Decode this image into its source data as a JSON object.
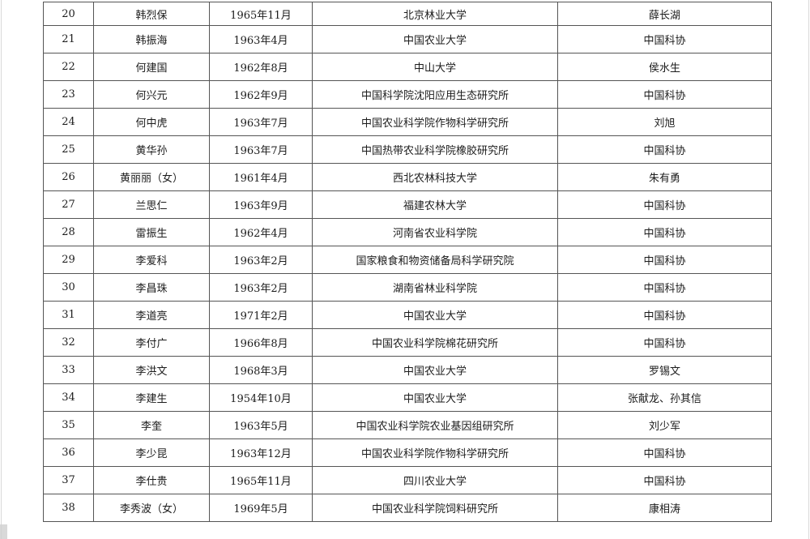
{
  "colors": {
    "table_border": "#555555",
    "text": "#1c1c1c",
    "page_edge": "#d9d9d9"
  },
  "table": {
    "column_keys": [
      "no",
      "name",
      "birth_date",
      "institution",
      "recommender"
    ],
    "rows": [
      [
        "20",
        "韩烈保",
        "1965年11月",
        "北京林业大学",
        "薛长湖"
      ],
      [
        "21",
        "韩振海",
        "1963年4月",
        "中国农业大学",
        "中国科协"
      ],
      [
        "22",
        "何建国",
        "1962年8月",
        "中山大学",
        "侯水生"
      ],
      [
        "23",
        "何兴元",
        "1962年9月",
        "中国科学院沈阳应用生态研究所",
        "中国科协"
      ],
      [
        "24",
        "何中虎",
        "1963年7月",
        "中国农业科学院作物科学研究所",
        "刘旭"
      ],
      [
        "25",
        "黄华孙",
        "1963年7月",
        "中国热带农业科学院橡胶研究所",
        "中国科协"
      ],
      [
        "26",
        "黄丽丽（女）",
        "1961年4月",
        "西北农林科技大学",
        "朱有勇"
      ],
      [
        "27",
        "兰思仁",
        "1963年9月",
        "福建农林大学",
        "中国科协"
      ],
      [
        "28",
        "雷振生",
        "1962年4月",
        "河南省农业科学院",
        "中国科协"
      ],
      [
        "29",
        "李爱科",
        "1963年2月",
        "国家粮食和物资储备局科学研究院",
        "中国科协"
      ],
      [
        "30",
        "李昌珠",
        "1963年2月",
        "湖南省林业科学院",
        "中国科协"
      ],
      [
        "31",
        "李道亮",
        "1971年2月",
        "中国农业大学",
        "中国科协"
      ],
      [
        "32",
        "李付广",
        "1966年8月",
        "中国农业科学院棉花研究所",
        "中国科协"
      ],
      [
        "33",
        "李洪文",
        "1968年3月",
        "中国农业大学",
        "罗锡文"
      ],
      [
        "34",
        "李建生",
        "1954年10月",
        "中国农业大学",
        "张献龙、孙其信"
      ],
      [
        "35",
        "李奎",
        "1963年5月",
        "中国农业科学院农业基因组研究所",
        "刘少军"
      ],
      [
        "36",
        "李少昆",
        "1963年12月",
        "中国农业科学院作物科学研究所",
        "中国科协"
      ],
      [
        "37",
        "李仕贵",
        "1965年11月",
        "四川农业大学",
        "中国科协"
      ],
      [
        "38",
        "李秀波（女）",
        "1969年5月",
        "中国农业科学院饲料研究所",
        "康相涛"
      ]
    ]
  }
}
